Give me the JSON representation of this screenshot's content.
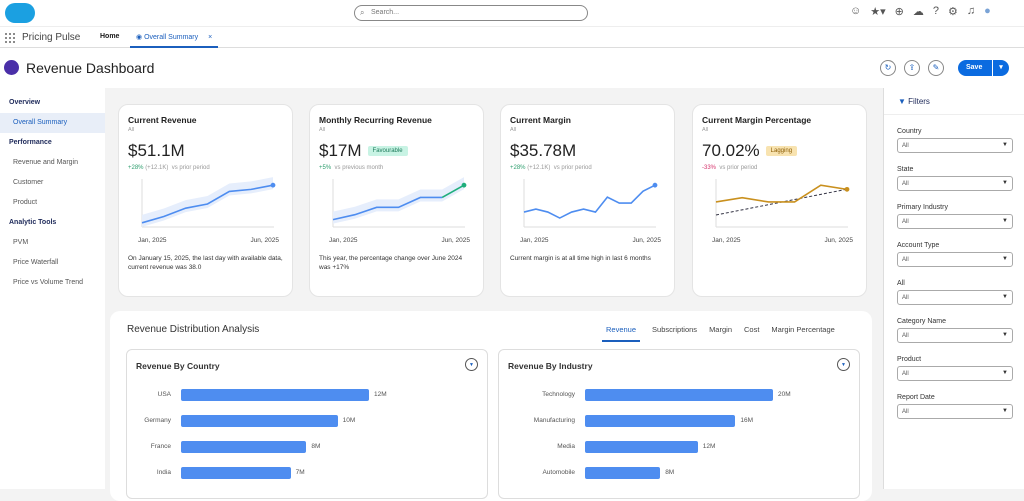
{
  "topbar": {
    "search_placeholder": "Search...",
    "icons": [
      "astro-icon",
      "favorites-icon",
      "add-icon",
      "trailhead-icon",
      "help-icon",
      "settings-icon",
      "bell-icon",
      "avatar"
    ]
  },
  "nav": {
    "app_name": "Pricing Pulse",
    "home": "Home",
    "tab": "Overall Summary",
    "tab_close": "×"
  },
  "header": {
    "title": "Revenue Dashboard",
    "save": "Save"
  },
  "sidebar": [
    {
      "type": "h",
      "label": "Overview"
    },
    {
      "type": "i",
      "label": "Overall Summary",
      "active": true
    },
    {
      "type": "h",
      "label": "Performance"
    },
    {
      "type": "i",
      "label": "Revenue and Margin"
    },
    {
      "type": "i",
      "label": "Customer"
    },
    {
      "type": "i",
      "label": "Product"
    },
    {
      "type": "h",
      "label": "Analytic Tools"
    },
    {
      "type": "i",
      "label": "PVM"
    },
    {
      "type": "i",
      "label": "Price Waterfall"
    },
    {
      "type": "i",
      "label": "Price vs Volume Trend"
    }
  ],
  "filters": {
    "title": "Filters",
    "items": [
      {
        "label": "Country",
        "value": "All"
      },
      {
        "label": "State",
        "value": "All"
      },
      {
        "label": "Primary Industry",
        "value": "All"
      },
      {
        "label": "Account Type",
        "value": "All"
      },
      {
        "label": "All",
        "value": "All"
      },
      {
        "label": "Category Name",
        "value": "All"
      },
      {
        "label": "Product",
        "value": "All"
      },
      {
        "label": "Report Date",
        "value": "All"
      }
    ]
  },
  "cards": [
    {
      "title": "Current Revenue",
      "sub": "All",
      "value": "$51.1M",
      "badge": "",
      "change": "+28%",
      "change_abs": "(+12.1K)",
      "change_note": "vs prior period",
      "change_color": "#2e9e6e",
      "x_start": "Jan, 2025",
      "x_end": "Jun, 2025",
      "desc": "On January 15, 2025, the last day with available data, current revenue was 38.0",
      "line": [
        2,
        5,
        9,
        11,
        17,
        18,
        20
      ],
      "color": "#4e8df0",
      "band": true
    },
    {
      "title": "Monthly Recurring Revenue",
      "sub": "All",
      "value": "$17M",
      "badge": "Favourable",
      "badge_bg": "#c8f3e4",
      "badge_fg": "#1c7a5a",
      "change": "+5%",
      "change_abs": "",
      "change_note": "vs previous month",
      "change_color": "#2e9e6e",
      "x_start": "Jan, 2025",
      "x_end": "Jun, 2025",
      "desc": "This year, the percentage change over June 2024 was +17%",
      "line": [
        3,
        5,
        8,
        8,
        12,
        12,
        17
      ],
      "color": "#4e8df0",
      "end_color": "#1fae7c",
      "band": true
    },
    {
      "title": "Current Margin",
      "sub": "All",
      "value": "$35.78M",
      "badge": "",
      "change": "+28%",
      "change_abs": "(+12.1K)",
      "change_note": "vs prior period",
      "change_color": "#2e9e6e",
      "x_start": "Jan, 2025",
      "x_end": "Jun, 2025",
      "desc": "Current margin is at all time high in last 6 months",
      "line": [
        5,
        6,
        5,
        3,
        5,
        6,
        5,
        10,
        8,
        8,
        12,
        14
      ],
      "color": "#4e8df0",
      "band": false
    },
    {
      "title": "Current Margin Percentage",
      "sub": "All",
      "value": "70.02%",
      "badge": "Lagging",
      "badge_bg": "#f8e3b0",
      "badge_fg": "#8a5a00",
      "change": "-33%",
      "change_abs": "",
      "change_note": "vs prior period",
      "change_color": "#d6336c",
      "x_start": "Jan, 2025",
      "x_end": "Jun, 2025",
      "desc": "",
      "line": [
        6,
        7,
        6,
        6,
        10,
        9
      ],
      "color": "#c9901e",
      "trend": true,
      "band": false
    }
  ],
  "distribution": {
    "title": "Revenue Distribution Analysis",
    "tabs": [
      "Revenue",
      "Subscriptions",
      "Margin",
      "Cost",
      "Margin Percentage"
    ],
    "active_tab": "Revenue"
  },
  "chart_data": [
    {
      "type": "bar",
      "title": "Revenue By Country",
      "categories": [
        "USA",
        "Germany",
        "France",
        "India"
      ],
      "values": [
        12,
        10,
        8,
        7
      ],
      "labels": [
        "12M",
        "10M",
        "8M",
        "7M"
      ],
      "color": "#4e8df0"
    },
    {
      "type": "bar",
      "title": "Revenue By Industry",
      "categories": [
        "Technology",
        "Manufacturing",
        "Media",
        "Automobile"
      ],
      "values": [
        20,
        16,
        12,
        8
      ],
      "labels": [
        "20M",
        "16M",
        "12M",
        "8M"
      ],
      "color": "#4e8df0"
    }
  ]
}
